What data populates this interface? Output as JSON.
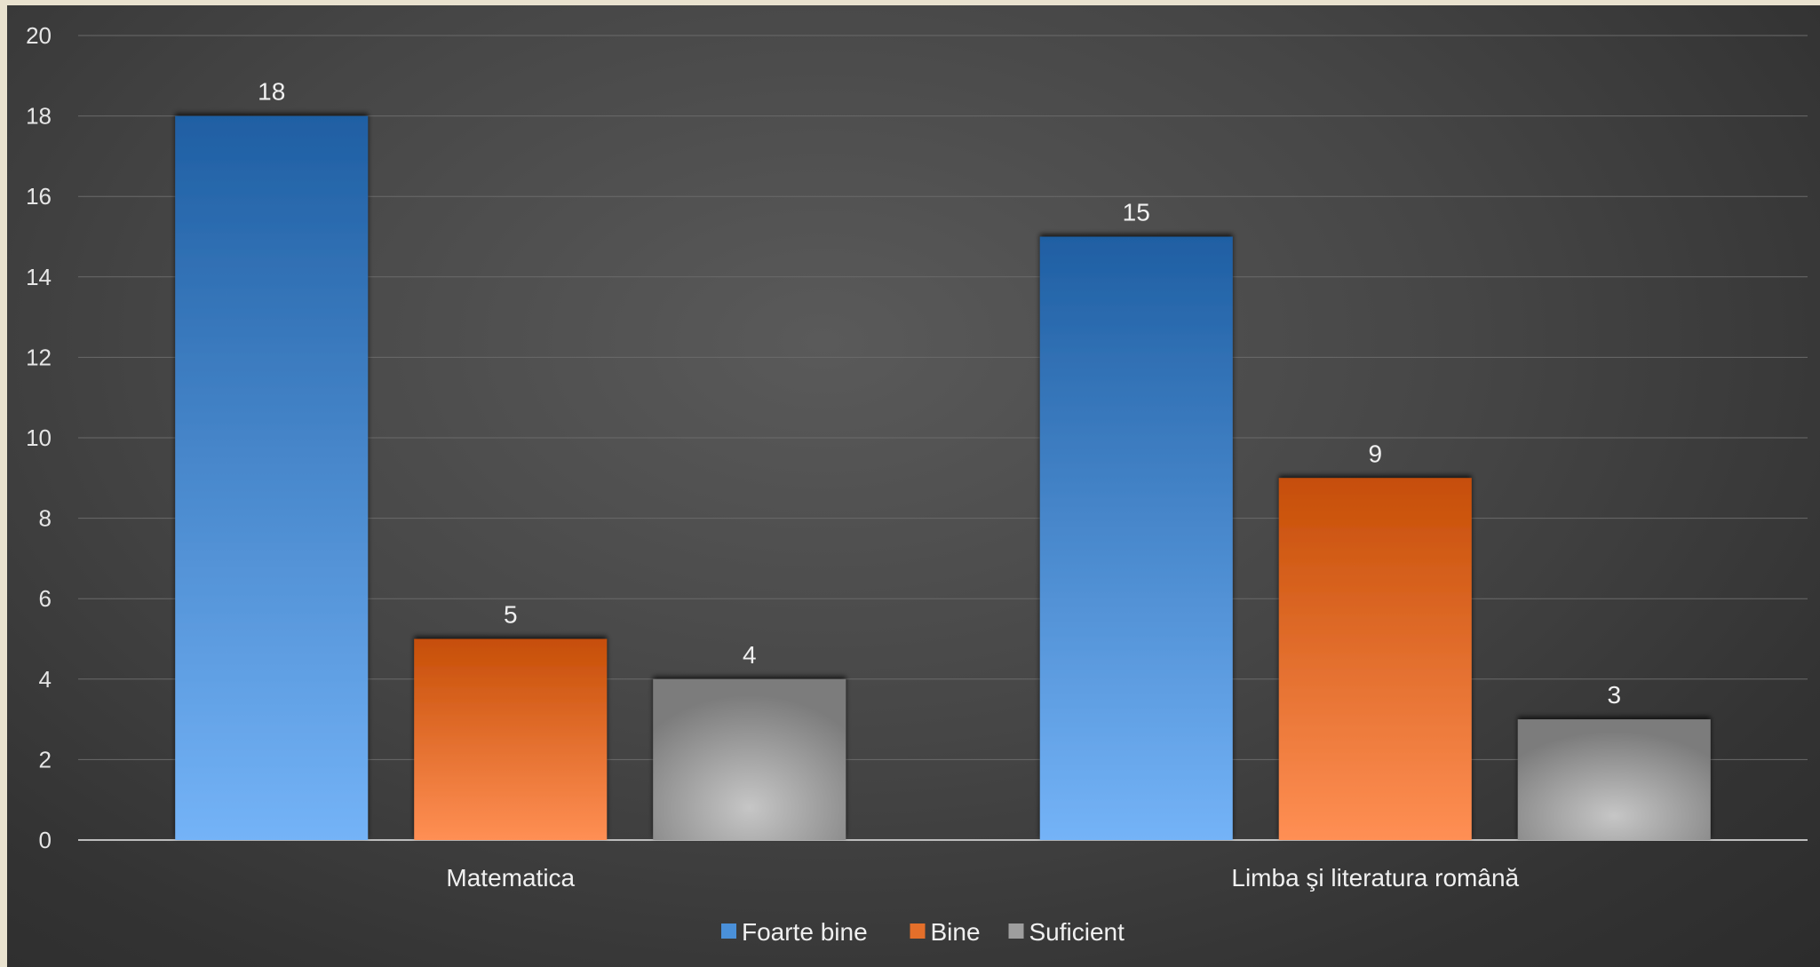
{
  "chart_data": {
    "type": "bar",
    "categories": [
      "Matematica",
      "Limba şi literatura română"
    ],
    "series": [
      {
        "name": "Foarte bine",
        "values": [
          18,
          15
        ],
        "color": "#4a90d9"
      },
      {
        "name": "Bine",
        "values": [
          5,
          9
        ],
        "color": "#e46f2a"
      },
      {
        "name": "Suficient",
        "values": [
          4,
          3
        ],
        "color": "#9e9e9e"
      }
    ],
    "ylim": [
      0,
      20
    ],
    "yticks": [
      0,
      2,
      4,
      6,
      8,
      10,
      12,
      14,
      16,
      18,
      20
    ],
    "grid": true,
    "legend": "bottom",
    "data_labels": true
  }
}
